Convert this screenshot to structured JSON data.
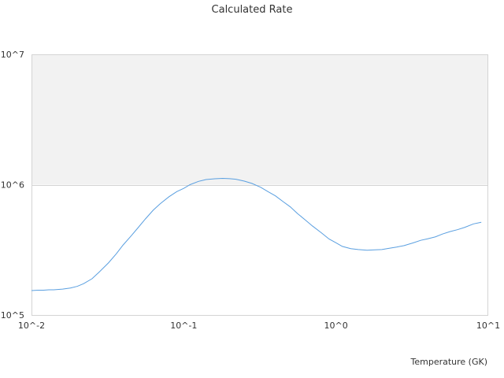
{
  "chart_data": {
    "type": "line",
    "title": "Calculated Rate",
    "xlabel": "Temperature (GK)",
    "ylabel": "",
    "x_scale": "log",
    "y_scale": "log",
    "xlim": [
      0.01,
      10
    ],
    "ylim": [
      100000,
      10000000
    ],
    "x_ticks": [
      {
        "value": 0.01,
        "label": "10^-2"
      },
      {
        "value": 0.1,
        "label": "10^-1"
      },
      {
        "value": 1,
        "label": "10^0"
      },
      {
        "value": 10,
        "label": "10^1"
      }
    ],
    "y_ticks": [
      {
        "value": 100000,
        "label": "10^5"
      },
      {
        "value": 1000000,
        "label": "10^6"
      },
      {
        "value": 10000000,
        "label": "10^7"
      }
    ],
    "grid": true,
    "legend": "none",
    "colors": {
      "line": "#5a9fe0",
      "band": "#f2f2f2",
      "axis": "#d4d4d4",
      "text": "#333333"
    },
    "series": [
      {
        "x": [
          0.01,
          0.011,
          0.012,
          0.013,
          0.014,
          0.016,
          0.018,
          0.02,
          0.022,
          0.025,
          0.028,
          0.032,
          0.036,
          0.04,
          0.045,
          0.05,
          0.056,
          0.063,
          0.07,
          0.08,
          0.09,
          0.1,
          0.11,
          0.125,
          0.14,
          0.16,
          0.18,
          0.2,
          0.22,
          0.25,
          0.28,
          0.32,
          0.36,
          0.4,
          0.45,
          0.5,
          0.56,
          0.63,
          0.7,
          0.8,
          0.9,
          1.0,
          1.1,
          1.25,
          1.4,
          1.6,
          1.8,
          2.0,
          2.2,
          2.5,
          2.8,
          3.2,
          3.6,
          4.0,
          4.5,
          5.0,
          5.6,
          6.3,
          7.0,
          8.0,
          9.0
        ],
        "y": [
          154000,
          155000,
          155000,
          156000,
          156000,
          158000,
          161000,
          166000,
          174000,
          190000,
          215000,
          251000,
          294000,
          345000,
          403000,
          466000,
          546000,
          637000,
          714000,
          808000,
          885000,
          937000,
          1000000,
          1060000,
          1095000,
          1110000,
          1117000,
          1112000,
          1100000,
          1065000,
          1023000,
          955000,
          880000,
          821000,
          740000,
          677000,
          599000,
          535000,
          482000,
          428000,
          383000,
          358000,
          336000,
          323000,
          318000,
          314000,
          316000,
          318000,
          324000,
          332000,
          341000,
          357000,
          374000,
          384000,
          398000,
          418000,
          436000,
          452000,
          470000,
          500000,
          515000
        ]
      }
    ]
  }
}
